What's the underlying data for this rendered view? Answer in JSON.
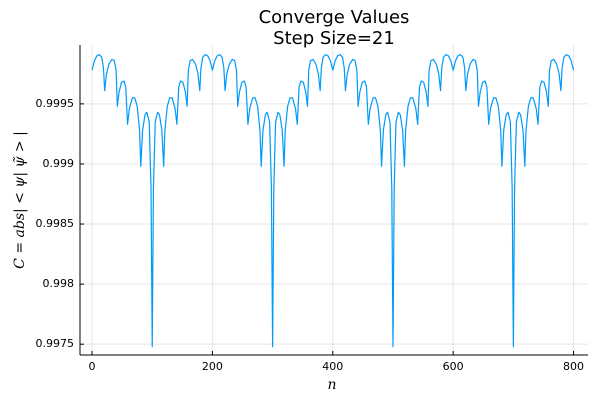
{
  "chart_data": {
    "type": "line",
    "title": "Converge Values",
    "subtitle": "Step Size=21",
    "x_label": "n",
    "y_label": "C = abs| < ψ| ψ̃ > |",
    "xlim": [
      -20,
      824
    ],
    "ylim": [
      0.99741,
      0.99999
    ],
    "xticks": [
      0,
      200,
      400,
      600,
      800
    ],
    "yticks": [
      0.9975,
      0.998,
      0.9985,
      0.999,
      0.9995
    ],
    "grid": true,
    "x": [
      0,
      4,
      8,
      12,
      16,
      19,
      21,
      24,
      28,
      33,
      37,
      40,
      42,
      45,
      49,
      53,
      56,
      59,
      62,
      67,
      71,
      75,
      79,
      81,
      84,
      88,
      91,
      95,
      98,
      100,
      102,
      105,
      109,
      112,
      116,
      119,
      121,
      125,
      129,
      133,
      138,
      141,
      144,
      147,
      151,
      155,
      158,
      160,
      163,
      167,
      172,
      176,
      179,
      181,
      184,
      188,
      192,
      196,
      200,
      204,
      208,
      212,
      216,
      219,
      221,
      224,
      228,
      233,
      237,
      240,
      242,
      245,
      249,
      253,
      256,
      259,
      262,
      267,
      271,
      275,
      279,
      281,
      284,
      288,
      291,
      295,
      298,
      300,
      302,
      305,
      309,
      312,
      316,
      319,
      321,
      325,
      329,
      333,
      338,
      341,
      344,
      347,
      351,
      355,
      358,
      360,
      363,
      367,
      372,
      376,
      379,
      381,
      384,
      388,
      392,
      396,
      400,
      404,
      408,
      412,
      416,
      419,
      421,
      424,
      428,
      433,
      437,
      440,
      442,
      445,
      449,
      453,
      456,
      459,
      462,
      467,
      471,
      475,
      479,
      481,
      484,
      488,
      491,
      495,
      498,
      500,
      502,
      505,
      509,
      512,
      516,
      519,
      521,
      525,
      529,
      533,
      538,
      541,
      544,
      547,
      551,
      555,
      558,
      560,
      563,
      567,
      572,
      576,
      579,
      581,
      584,
      588,
      592,
      596,
      600,
      604,
      608,
      612,
      616,
      619,
      621,
      624,
      628,
      633,
      637,
      640,
      642,
      645,
      649,
      653,
      656,
      659,
      662,
      667,
      671,
      675,
      679,
      681,
      684,
      688,
      691,
      695,
      698,
      700,
      702,
      705,
      709,
      712,
      716,
      719,
      721,
      725,
      729,
      733,
      738,
      741,
      744,
      747,
      751,
      755,
      758,
      760,
      763,
      767,
      772,
      776,
      779,
      781,
      784,
      788,
      792,
      796,
      800
    ],
    "series": [
      {
        "name": "y1",
        "color": "#009af9",
        "values": [
          0.99978,
          0.99986,
          0.9999,
          0.99991,
          0.99989,
          0.9998,
          0.99961,
          0.99975,
          0.99983,
          0.99987,
          0.99986,
          0.99978,
          0.99948,
          0.9996,
          0.99968,
          0.99969,
          0.99964,
          0.99933,
          0.99946,
          0.99955,
          0.99955,
          0.99948,
          0.99928,
          0.99898,
          0.99928,
          0.99941,
          0.99943,
          0.99935,
          0.9988,
          0.99748,
          0.9988,
          0.99935,
          0.99943,
          0.99941,
          0.99928,
          0.99898,
          0.99928,
          0.99948,
          0.99955,
          0.99955,
          0.99946,
          0.99933,
          0.99964,
          0.99969,
          0.99968,
          0.9996,
          0.99948,
          0.99978,
          0.99986,
          0.99987,
          0.99983,
          0.99975,
          0.99961,
          0.9998,
          0.99989,
          0.99991,
          0.9999,
          0.99986,
          0.99978,
          0.99986,
          0.9999,
          0.99991,
          0.99989,
          0.9998,
          0.99961,
          0.99975,
          0.99983,
          0.99987,
          0.99986,
          0.99978,
          0.99948,
          0.9996,
          0.99968,
          0.99969,
          0.99964,
          0.99933,
          0.99946,
          0.99955,
          0.99955,
          0.99948,
          0.99928,
          0.99898,
          0.99928,
          0.99941,
          0.99943,
          0.99935,
          0.9988,
          0.99748,
          0.9988,
          0.99935,
          0.99943,
          0.99941,
          0.99928,
          0.99898,
          0.99928,
          0.99948,
          0.99955,
          0.99955,
          0.99946,
          0.99933,
          0.99964,
          0.99969,
          0.99968,
          0.9996,
          0.99948,
          0.99978,
          0.99986,
          0.99987,
          0.99983,
          0.99975,
          0.99961,
          0.9998,
          0.99989,
          0.99991,
          0.9999,
          0.99986,
          0.99978,
          0.99986,
          0.9999,
          0.99991,
          0.99989,
          0.9998,
          0.99961,
          0.99975,
          0.99983,
          0.99987,
          0.99986,
          0.99978,
          0.99948,
          0.9996,
          0.99968,
          0.99969,
          0.99964,
          0.99933,
          0.99946,
          0.99955,
          0.99955,
          0.99948,
          0.99928,
          0.99898,
          0.99928,
          0.99941,
          0.99943,
          0.99935,
          0.9988,
          0.99748,
          0.9988,
          0.99935,
          0.99943,
          0.99941,
          0.99928,
          0.99898,
          0.99928,
          0.99948,
          0.99955,
          0.99955,
          0.99946,
          0.99933,
          0.99964,
          0.99969,
          0.99968,
          0.9996,
          0.99948,
          0.99978,
          0.99986,
          0.99987,
          0.99983,
          0.99975,
          0.99961,
          0.9998,
          0.99989,
          0.99991,
          0.9999,
          0.99986,
          0.99978,
          0.99986,
          0.9999,
          0.99991,
          0.99989,
          0.9998,
          0.99961,
          0.99975,
          0.99983,
          0.99987,
          0.99986,
          0.99978,
          0.99948,
          0.9996,
          0.99968,
          0.99969,
          0.99964,
          0.99933,
          0.99946,
          0.99955,
          0.99955,
          0.99948,
          0.99928,
          0.99898,
          0.99928,
          0.99941,
          0.99943,
          0.99935,
          0.9988,
          0.99748,
          0.9988,
          0.99935,
          0.99943,
          0.99941,
          0.99928,
          0.99898,
          0.99928,
          0.99948,
          0.99955,
          0.99955,
          0.99946,
          0.99933,
          0.99964,
          0.99969,
          0.99968,
          0.9996,
          0.99948,
          0.99978,
          0.99986,
          0.99987,
          0.99983,
          0.99975,
          0.99961,
          0.9998,
          0.99989,
          0.99991,
          0.9999,
          0.99986,
          0.99978
        ]
      }
    ]
  }
}
